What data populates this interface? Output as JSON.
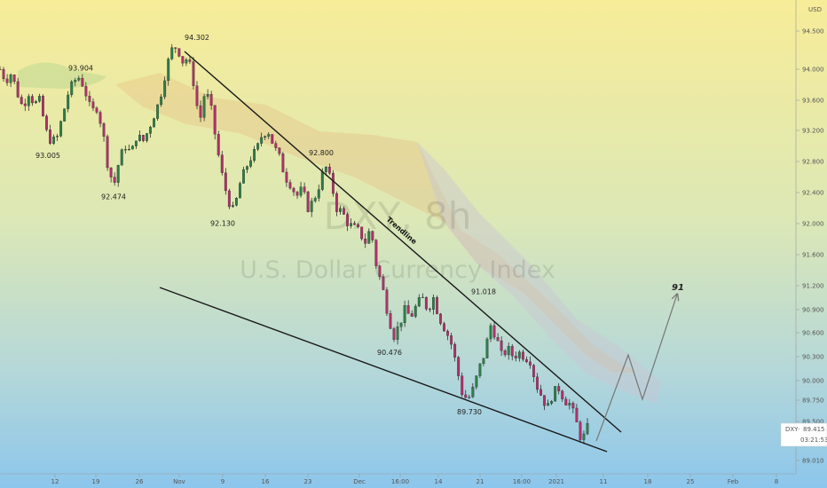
{
  "chart_data": {
    "type": "candlestick",
    "symbol": "DXY, 8h",
    "name": "U.S. Dollar Currency Index",
    "currency": "USD",
    "price_label": "DXY",
    "last_price": "89.415",
    "countdown": "03:21:53",
    "ylim": [
      88.95,
      94.6
    ],
    "y_ticks": [
      "94.500",
      "94.000",
      "93.600",
      "93.200",
      "92.800",
      "92.400",
      "92.000",
      "91.600",
      "91.200",
      "90.900",
      "90.600",
      "90.300",
      "90.000",
      "89.750",
      "89.500",
      "89.010"
    ],
    "x_ticks": [
      "12",
      "19",
      "26",
      "Nov",
      "9",
      "16",
      "23",
      "Dec",
      "16:00",
      "14",
      "21",
      "16:00",
      "2021",
      "11",
      "18",
      "25",
      "Feb",
      "8"
    ],
    "annotations": [
      {
        "label": "94.302",
        "value": 94.302
      },
      {
        "label": "93.904",
        "value": 93.904
      },
      {
        "label": "93.005",
        "value": 93.005
      },
      {
        "label": "92.474",
        "value": 92.474
      },
      {
        "label": "92.130",
        "value": 92.13
      },
      {
        "label": "92.800",
        "value": 92.8
      },
      {
        "label": "91.018",
        "value": 91.018
      },
      {
        "label": "90.476",
        "value": 90.476
      },
      {
        "label": "89.730",
        "value": 89.73
      }
    ],
    "trendline_label": "Trendline",
    "target_label": "91",
    "price_path": [
      94.0,
      93.85,
      93.95,
      93.7,
      93.5,
      93.7,
      93.55,
      93.6,
      93.2,
      93.05,
      93.1,
      93.4,
      93.7,
      93.85,
      93.9,
      93.7,
      93.45,
      93.5,
      93.2,
      92.7,
      92.5,
      92.85,
      93.0,
      92.9,
      93.15,
      93.05,
      93.2,
      93.4,
      93.6,
      93.95,
      94.25,
      94.3,
      94.1,
      94.15,
      93.8,
      93.3,
      93.75,
      93.5,
      93.0,
      92.6,
      92.3,
      92.15,
      92.5,
      92.7,
      92.85,
      92.95,
      93.15,
      93.2,
      93.0,
      92.85,
      92.6,
      92.5,
      92.35,
      92.45,
      92.2,
      92.3,
      92.5,
      92.75,
      92.55,
      92.2,
      92.15,
      92.0,
      91.95,
      91.9,
      91.75,
      91.95,
      91.45,
      91.2,
      90.85,
      90.55,
      90.7,
      90.9,
      90.8,
      90.95,
      91.05,
      90.9,
      91.05,
      90.8,
      90.65,
      90.5,
      90.2,
      89.85,
      89.75,
      89.9,
      90.15,
      90.35,
      90.7,
      90.55,
      90.3,
      90.4,
      90.3,
      90.35,
      90.3,
      90.25,
      89.95,
      89.8,
      89.65,
      89.85,
      89.9,
      89.75,
      89.7,
      89.5,
      89.25,
      89.42
    ]
  }
}
